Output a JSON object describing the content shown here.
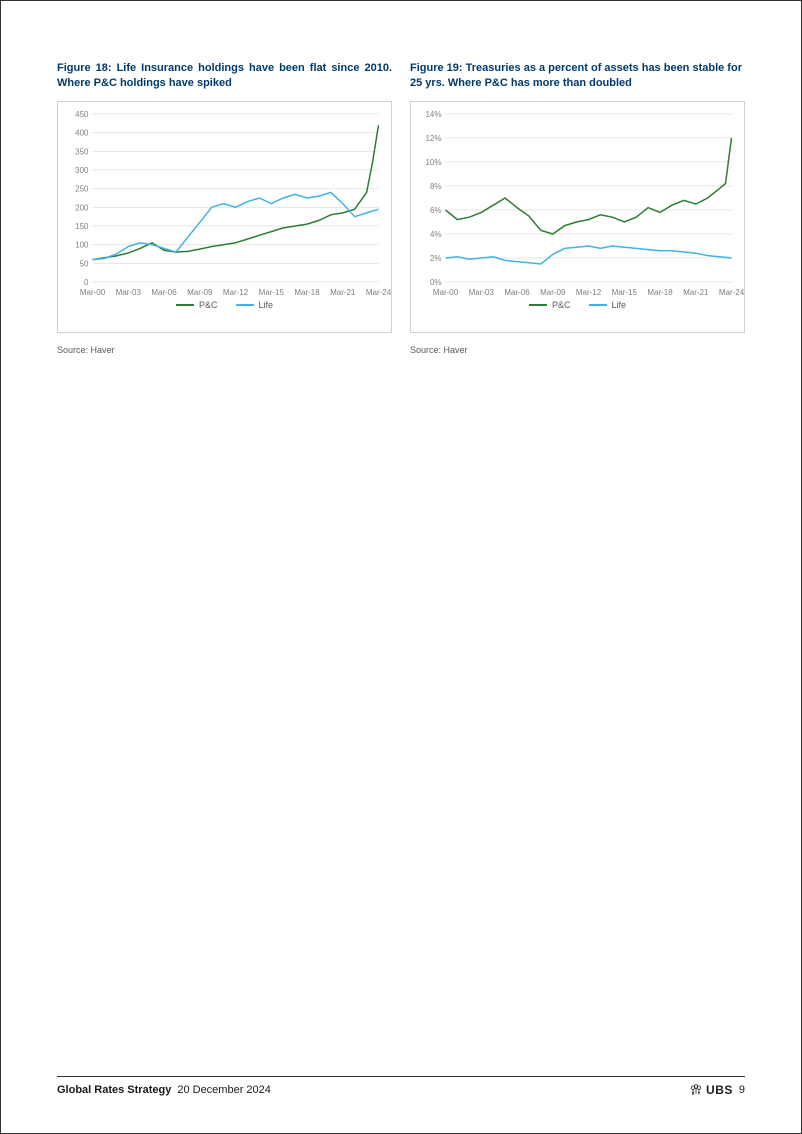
{
  "figure18": {
    "title": "Figure 18: Life Insurance holdings have been flat since 2010. Where P&C holdings have spiked",
    "type": "line",
    "source": "Source: Haver",
    "ylim": [
      0,
      450
    ],
    "ytick_step": 50,
    "yticks": [
      0,
      50,
      100,
      150,
      200,
      250,
      300,
      350,
      400,
      450
    ],
    "x_labels": [
      "Mar-00",
      "Mar-03",
      "Mar-06",
      "Mar-09",
      "Mar-12",
      "Mar-15",
      "Mar-18",
      "Mar-21",
      "Mar-24"
    ],
    "x_years": [
      2000,
      2003,
      2006,
      2009,
      2012,
      2015,
      2018,
      2021,
      2024
    ],
    "series": [
      {
        "name": "P&C",
        "color": "#2e7d32",
        "x": [
          2000,
          2001,
          2002,
          2003,
          2004,
          2005,
          2006,
          2007,
          2008,
          2009,
          2010,
          2011,
          2012,
          2013,
          2014,
          2015,
          2016,
          2017,
          2018,
          2019,
          2020,
          2021,
          2022,
          2023,
          2023.5,
          2024
        ],
        "y": [
          60,
          65,
          70,
          78,
          90,
          105,
          85,
          80,
          82,
          88,
          95,
          100,
          105,
          115,
          125,
          135,
          145,
          150,
          155,
          165,
          180,
          185,
          195,
          240,
          320,
          420
        ]
      },
      {
        "name": "Life",
        "color": "#3fb3e6",
        "x": [
          2000,
          2001,
          2002,
          2003,
          2004,
          2005,
          2006,
          2007,
          2008,
          2009,
          2010,
          2011,
          2012,
          2013,
          2014,
          2015,
          2016,
          2017,
          2018,
          2019,
          2020,
          2021,
          2022,
          2023,
          2024
        ],
        "y": [
          60,
          63,
          75,
          95,
          105,
          100,
          90,
          80,
          120,
          160,
          200,
          210,
          200,
          215,
          225,
          210,
          225,
          235,
          225,
          230,
          240,
          210,
          175,
          185,
          195
        ]
      }
    ],
    "legend": [
      {
        "label": "P&C",
        "color": "#2e7d32"
      },
      {
        "label": "Life",
        "color": "#3fb3e6"
      }
    ],
    "grid_color": "#e6e6e6",
    "background_color": "#ffffff",
    "axis_font_size": 8,
    "title_font_size": 11,
    "title_color": "#003a6d"
  },
  "figure19": {
    "title": "Figure 19: Treasuries as a percent of assets has been stable for 25 yrs. Where P&C has more than doubled",
    "type": "line",
    "source": "Source: Haver",
    "ylim": [
      0,
      14
    ],
    "ytick_step": 2,
    "yticks": [
      0,
      2,
      4,
      6,
      8,
      10,
      12,
      14
    ],
    "ytick_labels": [
      "0%",
      "2%",
      "4%",
      "6%",
      "8%",
      "10%",
      "12%",
      "14%"
    ],
    "x_labels": [
      "Mar-00",
      "Mar-03",
      "Mar-06",
      "Mar-09",
      "Mar-12",
      "Mar-15",
      "Mar-18",
      "Mar-21",
      "Mar-24"
    ],
    "x_years": [
      2000,
      2003,
      2006,
      2009,
      2012,
      2015,
      2018,
      2021,
      2024
    ],
    "series": [
      {
        "name": "P&C",
        "color": "#2e7d32",
        "x": [
          2000,
          2001,
          2002,
          2003,
          2004,
          2005,
          2006,
          2007,
          2008,
          2009,
          2010,
          2011,
          2012,
          2013,
          2014,
          2015,
          2016,
          2017,
          2018,
          2019,
          2020,
          2021,
          2022,
          2023,
          2023.5,
          2024
        ],
        "y": [
          6.0,
          5.2,
          5.4,
          5.8,
          6.4,
          7.0,
          6.2,
          5.5,
          4.3,
          4.0,
          4.7,
          5.0,
          5.2,
          5.6,
          5.4,
          5.0,
          5.4,
          6.2,
          5.8,
          6.4,
          6.8,
          6.5,
          7.0,
          7.8,
          8.2,
          12.0
        ]
      },
      {
        "name": "Life",
        "color": "#3fb3e6",
        "x": [
          2000,
          2001,
          2002,
          2003,
          2004,
          2005,
          2006,
          2007,
          2008,
          2009,
          2010,
          2011,
          2012,
          2013,
          2014,
          2015,
          2016,
          2017,
          2018,
          2019,
          2020,
          2021,
          2022,
          2023,
          2024
        ],
        "y": [
          2.0,
          2.1,
          1.9,
          2.0,
          2.1,
          1.8,
          1.7,
          1.6,
          1.5,
          2.3,
          2.8,
          2.9,
          3.0,
          2.8,
          3.0,
          2.9,
          2.8,
          2.7,
          2.6,
          2.6,
          2.5,
          2.4,
          2.2,
          2.1,
          2.0
        ]
      }
    ],
    "legend": [
      {
        "label": "P&C",
        "color": "#2e7d32"
      },
      {
        "label": "Life",
        "color": "#3fb3e6"
      }
    ],
    "grid_color": "#e6e6e6",
    "background_color": "#ffffff",
    "axis_font_size": 8,
    "title_font_size": 11,
    "title_color": "#003a6d"
  },
  "footer": {
    "title": "Global Rates Strategy",
    "date": "20 December 2024",
    "brand": "UBS",
    "page": "9"
  }
}
